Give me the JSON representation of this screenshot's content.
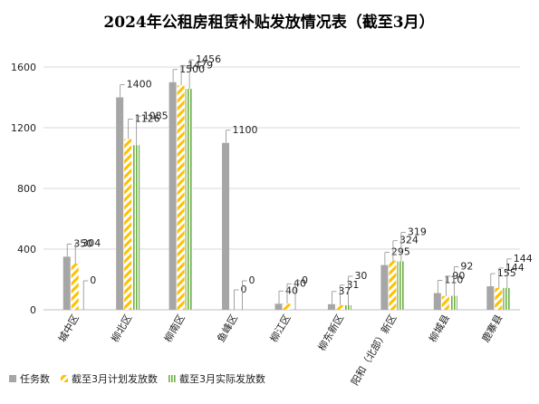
{
  "chart_data": {
    "type": "bar",
    "title": "2024年公租房租赁补贴发放情况表（截至3月）",
    "categories": [
      "城中区",
      "柳北区",
      "柳南区",
      "鱼峰区",
      "柳江区",
      "柳东新区",
      "阳和（北部）新区",
      "柳城县",
      "鹿寨县"
    ],
    "series": [
      {
        "name": "任务数",
        "values": [
          350,
          1400,
          1500,
          1100,
          40,
          37,
          295,
          110,
          155
        ],
        "color": "#a6a6a6",
        "pattern": "solid"
      },
      {
        "name": "截至3月计划发放数",
        "values": [
          304,
          1126,
          1479,
          0,
          40,
          31,
          324,
          90,
          144
        ],
        "color": "#ffc000",
        "pattern": "diagonal"
      },
      {
        "name": "截至3月实际发放数",
        "values": [
          0,
          1085,
          1456,
          0,
          0,
          30,
          319,
          92,
          144
        ],
        "color": "#70ad47",
        "pattern": "vertical"
      }
    ],
    "ylim": [
      0,
      1600
    ],
    "yticks": [
      0,
      400,
      800,
      1200,
      1600
    ],
    "grid": true,
    "legend_position": "bottom-left"
  }
}
